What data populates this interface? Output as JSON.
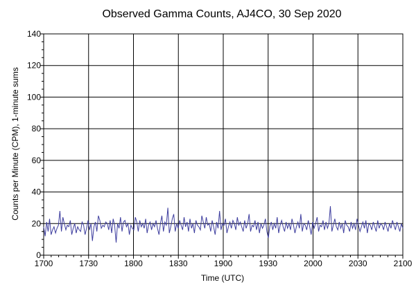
{
  "chart_data": {
    "type": "line",
    "title": "Observed Gamma Counts, AJ4CO, 30 Sep 2020",
    "xlabel": "Time (UTC)",
    "ylabel": "Counts per Minute (CPM), 1-minute sums",
    "x_tick_labels": [
      "1700",
      "1730",
      "1800",
      "1830",
      "1900",
      "1930",
      "2000",
      "2030",
      "2100"
    ],
    "y_tick_labels": [
      "0",
      "20",
      "40",
      "60",
      "80",
      "100",
      "120",
      "140"
    ],
    "xlim_minutes_from_1700": [
      0,
      240
    ],
    "ylim": [
      0,
      140
    ],
    "grid": true,
    "series": [
      {
        "color": "#3d3d9e",
        "y": [
          18,
          12,
          21,
          15,
          23,
          13,
          16,
          18,
          14,
          17,
          19,
          28,
          15,
          24,
          20,
          16,
          19,
          18,
          22,
          13,
          17,
          20,
          14,
          18,
          16,
          15,
          21,
          19,
          13,
          17,
          22,
          16,
          20,
          9,
          18,
          21,
          15,
          25,
          22,
          17,
          19,
          18,
          21,
          20,
          16,
          22,
          14,
          23,
          19,
          8,
          20,
          17,
          24,
          15,
          21,
          22,
          18,
          20,
          13,
          19,
          17,
          16,
          24,
          21,
          15,
          22,
          18,
          20,
          17,
          23,
          14,
          19,
          21,
          16,
          20,
          18,
          22,
          17,
          13,
          20,
          25,
          15,
          21,
          19,
          30,
          14,
          18,
          23,
          26,
          15,
          20,
          17,
          22,
          19,
          16,
          24,
          18,
          21,
          15,
          23,
          17,
          20,
          14,
          22,
          19,
          18,
          16,
          25,
          21,
          17,
          24,
          19,
          20,
          15,
          22,
          18,
          13,
          21,
          17,
          28,
          16,
          20,
          19,
          23,
          14,
          18,
          21,
          17,
          22,
          20,
          16,
          24,
          19,
          21,
          18,
          15,
          22,
          17,
          20,
          26,
          15,
          19,
          18,
          22,
          16,
          21,
          14,
          20,
          17,
          19,
          23,
          15,
          11,
          18,
          21,
          16,
          20,
          17,
          24,
          14,
          19,
          22,
          18,
          15,
          21,
          17,
          20,
          16,
          23,
          19,
          14,
          18,
          21,
          17,
          26,
          15,
          20,
          19,
          16,
          22,
          18,
          13,
          21,
          17,
          20,
          24,
          15,
          19,
          18,
          22,
          16,
          21,
          17,
          20,
          31,
          15,
          19,
          23,
          18,
          16,
          21,
          17,
          20,
          14,
          22,
          19,
          18,
          15,
          21,
          17,
          20,
          16,
          23,
          19,
          15,
          18,
          21,
          17,
          22,
          14,
          20,
          19,
          16,
          21,
          18,
          15,
          22,
          17,
          20,
          19,
          16,
          21,
          18,
          15,
          20,
          17,
          22,
          19,
          16,
          21,
          18,
          15,
          20,
          17
        ]
      }
    ]
  }
}
